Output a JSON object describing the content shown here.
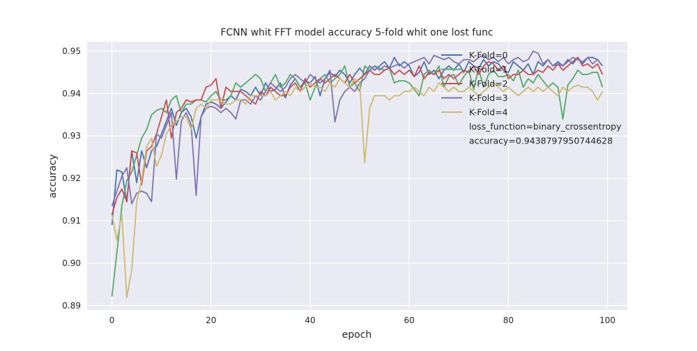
{
  "chart_data": {
    "type": "line",
    "title": "FCNN whit FFT model accuracy 5-fold whit one lost func",
    "xlabel": "epoch",
    "ylabel": "accuracy",
    "xlim": [
      -5,
      104
    ],
    "ylim": [
      0.889,
      0.9522
    ],
    "grid": true,
    "legend_position": "top-right",
    "x_ticks": [
      0,
      20,
      40,
      60,
      80,
      100
    ],
    "x_tick_labels": [
      "0",
      "20",
      "40",
      "60",
      "80",
      "100"
    ],
    "y_ticks": [
      0.89,
      0.9,
      0.91,
      0.92,
      0.93,
      0.94,
      0.95
    ],
    "y_tick_labels": [
      "0.89",
      "0.90",
      "0.91",
      "0.92",
      "0.93",
      "0.94",
      "0.95"
    ],
    "x": [
      0,
      1,
      2,
      3,
      4,
      5,
      6,
      7,
      8,
      9,
      10,
      11,
      12,
      13,
      14,
      15,
      16,
      17,
      18,
      19,
      20,
      21,
      22,
      23,
      24,
      25,
      26,
      27,
      28,
      29,
      30,
      31,
      32,
      33,
      34,
      35,
      36,
      37,
      38,
      39,
      40,
      41,
      42,
      43,
      44,
      45,
      46,
      47,
      48,
      49,
      50,
      51,
      52,
      53,
      54,
      55,
      56,
      57,
      58,
      59,
      60,
      61,
      62,
      63,
      64,
      65,
      66,
      67,
      68,
      69,
      70,
      71,
      72,
      73,
      74,
      75,
      76,
      77,
      78,
      79,
      80,
      81,
      82,
      83,
      84,
      85,
      86,
      87,
      88,
      89,
      90,
      91,
      92,
      93,
      94,
      95,
      96,
      97,
      98,
      99
    ],
    "series": [
      {
        "name": "K-Fold=0",
        "color": "#4c72b0",
        "values": [
          0.909,
          0.922,
          0.9215,
          0.9145,
          0.9265,
          0.919,
          0.9265,
          0.9225,
          0.9265,
          0.9275,
          0.9305,
          0.9335,
          0.9365,
          0.9325,
          0.9355,
          0.9365,
          0.9345,
          0.9295,
          0.9345,
          0.9375,
          0.938,
          0.9375,
          0.9365,
          0.938,
          0.9395,
          0.9385,
          0.941,
          0.9405,
          0.9395,
          0.9415,
          0.9395,
          0.9425,
          0.9405,
          0.941,
          0.9425,
          0.939,
          0.942,
          0.9435,
          0.9415,
          0.943,
          0.9425,
          0.944,
          0.9395,
          0.9435,
          0.945,
          0.944,
          0.9455,
          0.9445,
          0.9425,
          0.9445,
          0.946,
          0.9445,
          0.9465,
          0.9455,
          0.9465,
          0.9475,
          0.946,
          0.9485,
          0.9465,
          0.9475,
          0.9465,
          0.944,
          0.945,
          0.9475,
          0.9445,
          0.9455,
          0.9435,
          0.9455,
          0.9465,
          0.9455,
          0.947,
          0.945,
          0.9475,
          0.9465,
          0.946,
          0.948,
          0.9465,
          0.9475,
          0.947,
          0.9455,
          0.945,
          0.9475,
          0.9465,
          0.9455,
          0.947,
          0.9445,
          0.9475,
          0.9465,
          0.948,
          0.9465,
          0.9475,
          0.9465,
          0.948,
          0.947,
          0.9485,
          0.947,
          0.9485,
          0.9485,
          0.948,
          0.9465
        ]
      },
      {
        "name": "K-Fold=1",
        "color": "#55a868",
        "values": [
          0.8922,
          0.9025,
          0.9135,
          0.9195,
          0.9215,
          0.9255,
          0.9295,
          0.9315,
          0.935,
          0.936,
          0.9365,
          0.9355,
          0.9385,
          0.9395,
          0.9355,
          0.9375,
          0.9375,
          0.9385,
          0.9385,
          0.938,
          0.9395,
          0.9405,
          0.9385,
          0.9385,
          0.9395,
          0.9425,
          0.9415,
          0.9425,
          0.9435,
          0.9445,
          0.9435,
          0.9405,
          0.9425,
          0.9445,
          0.9415,
          0.9425,
          0.9445,
          0.9435,
          0.9415,
          0.9425,
          0.9385,
          0.9415,
          0.9435,
          0.9445,
          0.9425,
          0.9435,
          0.9445,
          0.9465,
          0.9415,
          0.9425,
          0.9405,
          0.9465,
          0.9455,
          0.9465,
          0.946,
          0.9455,
          0.946,
          0.9425,
          0.943,
          0.943,
          0.9425,
          0.941,
          0.9395,
          0.9445,
          0.9455,
          0.9445,
          0.9465,
          0.9415,
          0.944,
          0.9445,
          0.942,
          0.944,
          0.9455,
          0.941,
          0.946,
          0.9415,
          0.9445,
          0.9455,
          0.944,
          0.944,
          0.9445,
          0.943,
          0.9455,
          0.9415,
          0.9435,
          0.9425,
          0.9445,
          0.943,
          0.9415,
          0.9425,
          0.9415,
          0.934,
          0.942,
          0.9435,
          0.9455,
          0.9445,
          0.9445,
          0.945,
          0.945,
          0.9415
        ]
      },
      {
        "name": "K-Fold=2",
        "color": "#c44e52",
        "values": [
          0.9115,
          0.9155,
          0.9175,
          0.9145,
          0.9265,
          0.926,
          0.9185,
          0.9265,
          0.9275,
          0.9305,
          0.9345,
          0.9385,
          0.9295,
          0.9355,
          0.9365,
          0.9385,
          0.938,
          0.9385,
          0.9385,
          0.9415,
          0.942,
          0.9435,
          0.9365,
          0.9415,
          0.9405,
          0.9405,
          0.9405,
          0.9395,
          0.9385,
          0.9375,
          0.9405,
          0.9395,
          0.9415,
          0.9405,
          0.9395,
          0.9395,
          0.9415,
          0.9425,
          0.9405,
          0.9435,
          0.9415,
          0.9425,
          0.9435,
          0.9425,
          0.9435,
          0.9445,
          0.9435,
          0.9425,
          0.9445,
          0.9425,
          0.9435,
          0.9445,
          0.9455,
          0.9445,
          0.9445,
          0.9455,
          0.946,
          0.9445,
          0.9455,
          0.9445,
          0.9455,
          0.944,
          0.9465,
          0.9435,
          0.945,
          0.9445,
          0.9455,
          0.9435,
          0.9445,
          0.9435,
          0.9445,
          0.9455,
          0.945,
          0.9465,
          0.9445,
          0.9465,
          0.9475,
          0.947,
          0.9455,
          0.9465,
          0.9435,
          0.9445,
          0.9445,
          0.9455,
          0.9445,
          0.9445,
          0.9455,
          0.945,
          0.9465,
          0.9455,
          0.947,
          0.9455,
          0.9465,
          0.9475,
          0.9485,
          0.9465,
          0.947,
          0.946,
          0.947,
          0.9445
        ]
      },
      {
        "name": "K-Fold=3",
        "color": "#8172b2",
        "values": [
          0.9135,
          0.917,
          0.9205,
          0.9225,
          0.914,
          0.9165,
          0.917,
          0.9165,
          0.9145,
          0.9305,
          0.9295,
          0.9325,
          0.9355,
          0.9198,
          0.9335,
          0.9355,
          0.9325,
          0.916,
          0.9345,
          0.9365,
          0.937,
          0.9365,
          0.9355,
          0.9365,
          0.9355,
          0.934,
          0.9385,
          0.9385,
          0.9375,
          0.9395,
          0.9385,
          0.9405,
          0.9425,
          0.9415,
          0.9405,
          0.9415,
          0.9435,
          0.9445,
          0.9435,
          0.9425,
          0.9445,
          0.9435,
          0.9425,
          0.9435,
          0.9455,
          0.9333,
          0.9385,
          0.9405,
          0.9415,
          0.9405,
          0.9425,
          0.9435,
          0.9455,
          0.9465,
          0.9455,
          0.9465,
          0.946,
          0.9465,
          0.947,
          0.946,
          0.947,
          0.9475,
          0.948,
          0.9485,
          0.947,
          0.949,
          0.9485,
          0.948,
          0.9485,
          0.9475,
          0.947,
          0.948,
          0.948,
          0.9475,
          0.9485,
          0.949,
          0.948,
          0.9485,
          0.9475,
          0.9485,
          0.947,
          0.948,
          0.9485,
          0.9475,
          0.948,
          0.95,
          0.9495,
          0.947,
          0.948,
          0.9465,
          0.947,
          0.9465,
          0.9475,
          0.9485,
          0.948,
          0.9475,
          0.9485,
          0.947,
          0.948,
          0.9465
        ]
      },
      {
        "name": "K-Fold=4",
        "color": "#ccb974",
        "values": [
          0.9115,
          0.9055,
          0.9115,
          0.8919,
          0.8985,
          0.9145,
          0.9195,
          0.9275,
          0.9295,
          0.9228,
          0.9255,
          0.9305,
          0.9325,
          0.9335,
          0.9345,
          0.9345,
          0.9315,
          0.9365,
          0.9375,
          0.9365,
          0.9385,
          0.9385,
          0.9385,
          0.9375,
          0.9375,
          0.9385,
          0.9385,
          0.9375,
          0.9395,
          0.9395,
          0.9395,
          0.9395,
          0.9405,
          0.9385,
          0.9395,
          0.9405,
          0.9395,
          0.9415,
          0.9405,
          0.9415,
          0.9425,
          0.9415,
          0.9415,
          0.9405,
          0.9425,
          0.9415,
          0.9435,
          0.9425,
          0.9415,
          0.9435,
          0.9425,
          0.9237,
          0.9365,
          0.9395,
          0.9395,
          0.9395,
          0.9385,
          0.9395,
          0.9395,
          0.9405,
          0.9405,
          0.9415,
          0.9405,
          0.9395,
          0.9415,
          0.9405,
          0.9425,
          0.9415,
          0.9405,
          0.9415,
          0.9405,
          0.9405,
          0.9415,
          0.9405,
          0.9395,
          0.9405,
          0.9415,
          0.9425,
          0.9415,
          0.9405,
          0.9415,
          0.9405,
          0.9395,
          0.9405,
          0.9415,
          0.9405,
          0.9415,
          0.9405,
          0.9415,
          0.9405,
          0.9395,
          0.9415,
          0.9405,
          0.9415,
          0.942,
          0.9415,
          0.9415,
          0.9405,
          0.9385,
          0.9405
        ]
      }
    ],
    "annotations": [
      "loss_function=binary_crossentropy",
      "accuracy=0.9438797950744628"
    ]
  }
}
